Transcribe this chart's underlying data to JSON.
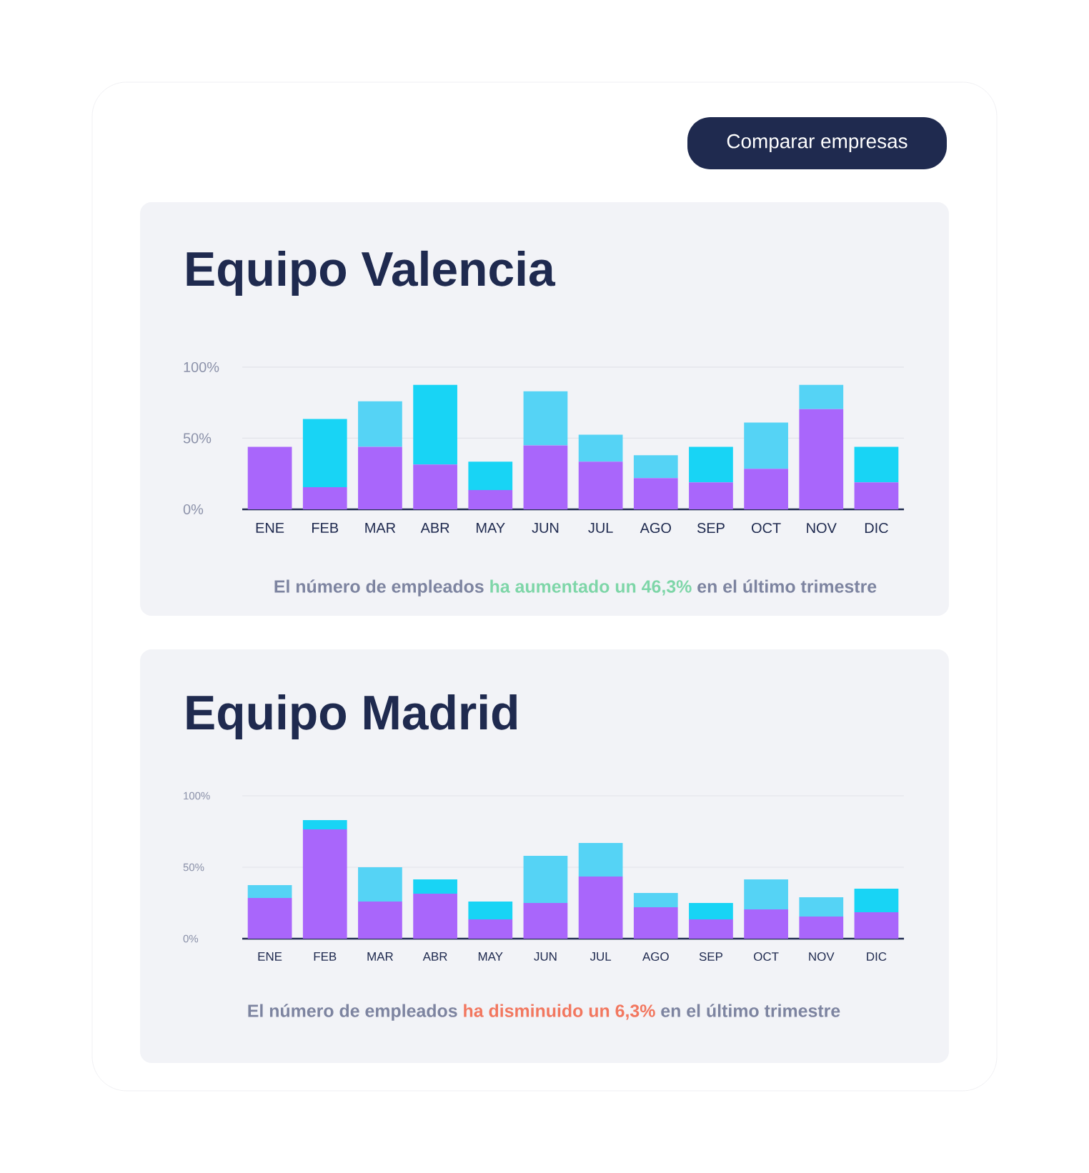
{
  "chart_data": [
    {
      "type": "other",
      "annotations": [
        "Comparar empresas"
      ]
    },
    {
      "type": "bar",
      "stacked": true,
      "title": "Equipo Valencia",
      "categories": [
        "ENE",
        "FEB",
        "MAR",
        "ABR",
        "MAY",
        "JUN",
        "JUL",
        "AGO",
        "SEP",
        "OCT",
        "NOV",
        "DIC"
      ],
      "series": [
        {
          "color": "#a966fb",
          "values": [
            44,
            15.5,
            44,
            31.5,
            13.5,
            45,
            33.5,
            22,
            19,
            28.5,
            70.5,
            19
          ]
        },
        {
          "colors": [
            "#55d3f5",
            "#18d4f5",
            "#55d3f5",
            "#18d4f5",
            "#18d4f5",
            "#55d3f5",
            "#55d3f5",
            "#55d3f5",
            "#18d4f5",
            "#55d3f5",
            "#55d3f5",
            "#18d4f5"
          ],
          "values": [
            null,
            48,
            32,
            56,
            20,
            38,
            19,
            16,
            25,
            32.5,
            17,
            25
          ]
        }
      ],
      "ylim": [
        0,
        100
      ],
      "yticks": [
        {
          "value": 0,
          "label": "0%"
        },
        {
          "value": 50,
          "label": "50%"
        },
        {
          "value": 100,
          "label": "100%"
        }
      ],
      "grid": "y",
      "annotations": [
        "El número de empleados",
        "ha aumentado un 46,3%",
        "en el último trimestre"
      ]
    },
    {
      "type": "bar",
      "stacked": true,
      "title": "Equipo Madrid",
      "categories": [
        "ENE",
        "FEB",
        "MAR",
        "ABR",
        "MAY",
        "JUN",
        "JUL",
        "AGO",
        "SEP",
        "OCT",
        "NOV",
        "DIC"
      ],
      "series": [
        {
          "color": "#a966fb",
          "values": [
            28.5,
            76.5,
            26,
            31.5,
            13.5,
            25,
            43.5,
            22,
            13.5,
            20.5,
            15.5,
            18.5
          ]
        },
        {
          "colors": [
            "#55d3f5",
            "#18d4f5",
            "#55d3f5",
            "#18d4f5",
            "#18d4f5",
            "#55d3f5",
            "#55d3f5",
            "#55d3f5",
            "#18d4f5",
            "#55d3f5",
            "#55d3f5",
            "#18d4f5"
          ],
          "values": [
            9,
            6.5,
            24,
            10,
            12.5,
            33,
            23.5,
            10,
            11.5,
            21,
            13.5,
            16.5
          ]
        }
      ],
      "ylim": [
        0,
        100
      ],
      "yticks": [
        {
          "value": 0,
          "label": "0%"
        },
        {
          "value": 50,
          "label": "50%"
        },
        {
          "value": 100,
          "label": "100%"
        }
      ],
      "grid": "y",
      "annotations": [
        "El número de empleados",
        "ha disminuido un 6,3%",
        "en el último trimestre"
      ]
    }
  ]
}
